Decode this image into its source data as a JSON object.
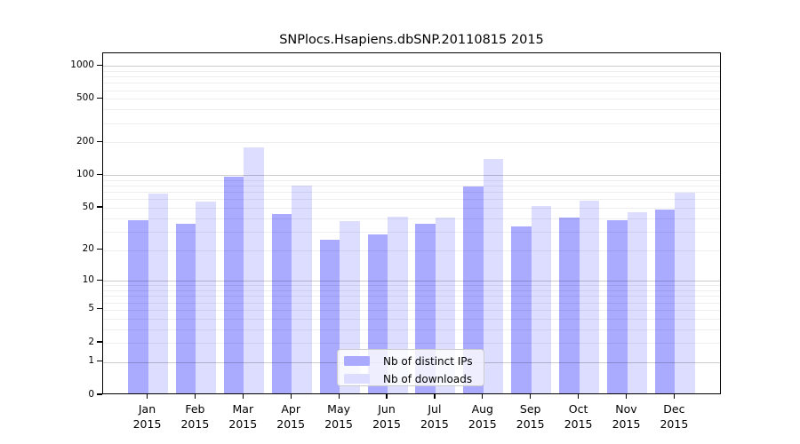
{
  "chart_data": {
    "type": "bar",
    "title": "SNPlocs.Hsapiens.dbSNP.20110815 2015",
    "categories": [
      "Jan",
      "Feb",
      "Mar",
      "Apr",
      "May",
      "Jun",
      "Jul",
      "Aug",
      "Sep",
      "Oct",
      "Nov",
      "Dec"
    ],
    "year": "2015",
    "series": [
      {
        "name": "Nb of distinct IPs",
        "color": "#aaaaff",
        "values": [
          37,
          34,
          93,
          42,
          24,
          27,
          34,
          76,
          32,
          39,
          37,
          46
        ]
      },
      {
        "name": "Nb of downloads",
        "color": "#ddddff",
        "values": [
          65,
          55,
          172,
          77,
          36,
          40,
          39,
          137,
          50,
          56,
          44,
          66
        ]
      }
    ],
    "xlabel": "",
    "ylabel": "",
    "y_scale": "log1p",
    "y_ticks": [
      0,
      1,
      2,
      5,
      10,
      20,
      50,
      100,
      200,
      500,
      1000
    ],
    "y_axis_top_log10_1p": 3.115,
    "grid_major_at": [
      1,
      10,
      100,
      1000
    ],
    "grid_minor": true,
    "legend_position": "lower center"
  },
  "colors": {
    "background": "#ffffff",
    "axis": "#000000",
    "bar_distinct_ips": "#aaaaff",
    "bar_downloads": "#ddddff",
    "grid_major": "rgba(0,0,0,0.20)",
    "grid_minor": "rgba(0,0,0,0.065)",
    "legend_background": "rgba(255,255,255,0.8)",
    "legend_border": "#cccccc"
  }
}
